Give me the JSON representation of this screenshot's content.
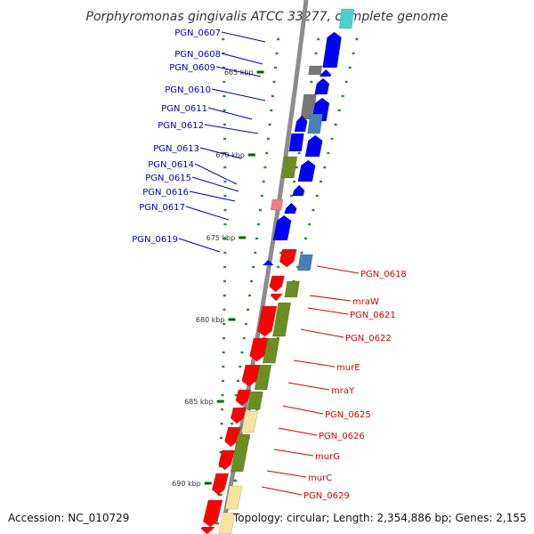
{
  "title": "Porphyromonas gingivalis ATCC 33277, complete genome",
  "accession": "Accession: NC_010729",
  "topology": "Topology: circular; Length: 2,354,886 bp; Genes: 2,155",
  "colors": {
    "backbone": "#8c8c8c",
    "label_left": "#0000bb",
    "label_right": "#dd0000",
    "blue": "#0000ff",
    "red": "#ff0000",
    "olive": "#6b8e23",
    "gray": "#777777",
    "pink": "#f08080",
    "steel": "#4682b4",
    "cyan": "#48d1cc",
    "wheat": "#f5e3a0",
    "tick_green": "#006400"
  },
  "scale_ticks": [
    "665 kbp",
    "670 kbp",
    "675 kbp",
    "680 kbp",
    "685 kbp",
    "690 kbp"
  ],
  "left_labels": [
    "PGN_0607",
    "PGN_0608",
    "PGN_0609",
    "PGN_0610",
    "PGN_0611",
    "PGN_0612",
    "PGN_0613",
    "PGN_0614",
    "PGN_0615",
    "PGN_0616",
    "PGN_0617",
    "PGN_0619"
  ],
  "right_labels": [
    "PGN_0618",
    "mraW",
    "PGN_0621",
    "PGN_0622",
    "murE",
    "mraY",
    "PGN_0625",
    "PGN_0626",
    "murG",
    "murC",
    "PGN_0629"
  ]
}
